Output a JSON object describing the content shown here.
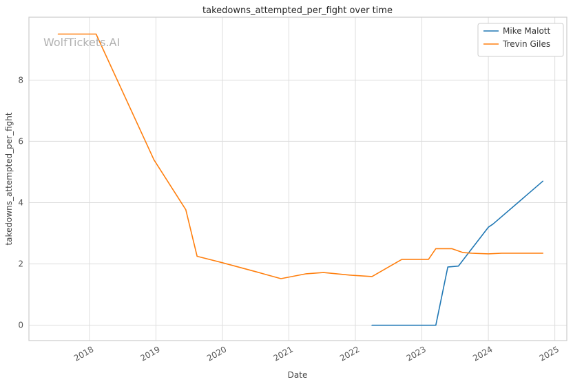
{
  "chart_data": {
    "type": "line",
    "title": "takedowns_attempted_per_fight over time",
    "xlabel": "Date",
    "ylabel": "takedowns_attempted_per_fight",
    "watermark": "WolfTickets.AI",
    "grid": true,
    "legend_position": "upper right",
    "xlim": [
      2017.09,
      2025.18
    ],
    "ylim": [
      -0.5,
      10.05
    ],
    "x_tick_values": [
      2018,
      2019,
      2020,
      2021,
      2022,
      2023,
      2024,
      2025
    ],
    "x_tick_labels": [
      "2018",
      "2019",
      "2020",
      "2021",
      "2022",
      "2023",
      "2024",
      "2025"
    ],
    "y_tick_values": [
      0,
      2,
      4,
      6,
      8
    ],
    "y_tick_labels": [
      "0",
      "2",
      "4",
      "6",
      "8"
    ],
    "colors": {
      "grid": "#dddddd",
      "spine": "#cccccc",
      "background": "#ffffff"
    },
    "series": [
      {
        "name": "Mike Malott",
        "color": "#1f77b4",
        "x": [
          2022.25,
          2023.21,
          2023.39,
          2023.55,
          2024.0,
          2024.07,
          2024.82
        ],
        "y": [
          0.0,
          0.0,
          1.9,
          1.93,
          3.2,
          3.3,
          4.7
        ]
      },
      {
        "name": "Trevin Giles",
        "color": "#ff7f0e",
        "x": [
          2017.53,
          2018.1,
          2018.97,
          2019.45,
          2019.62,
          2020.0,
          2020.5,
          2020.88,
          2021.26,
          2021.52,
          2021.95,
          2022.25,
          2022.7,
          2023.1,
          2023.21,
          2023.45,
          2023.62,
          2023.75,
          2024.0,
          2024.2,
          2024.82
        ],
        "y": [
          9.5,
          9.5,
          5.4,
          3.77,
          2.25,
          2.04,
          1.75,
          1.52,
          1.68,
          1.72,
          1.63,
          1.59,
          2.15,
          2.15,
          2.5,
          2.5,
          2.37,
          2.35,
          2.33,
          2.35,
          2.35
        ]
      }
    ]
  }
}
